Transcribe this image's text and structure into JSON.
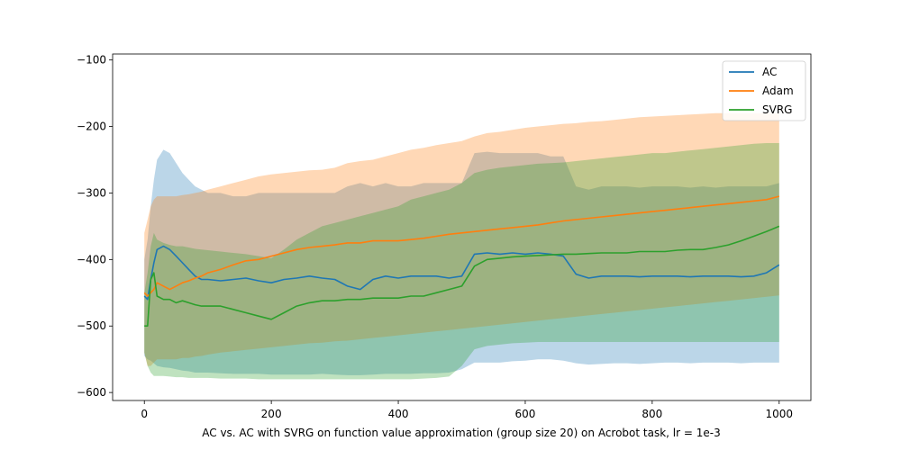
{
  "chart_data": {
    "type": "line",
    "title": "",
    "xlabel": "AC vs. AC with SVRG on function value approximation (group size 20) on Acrobot task, lr = 1e-3",
    "ylabel": "",
    "xlim": [
      -50,
      1050
    ],
    "ylim": [
      -612,
      -91
    ],
    "xticks": [
      "0",
      "200",
      "400",
      "600",
      "800",
      "1000"
    ],
    "yticks": [
      "−100",
      "−200",
      "−300",
      "−400",
      "−500",
      "−600"
    ],
    "grid": false,
    "legend_position": "upper right",
    "x": [
      0,
      5,
      10,
      15,
      20,
      30,
      40,
      50,
      60,
      70,
      80,
      90,
      100,
      120,
      140,
      160,
      180,
      200,
      220,
      240,
      260,
      280,
      300,
      320,
      340,
      360,
      380,
      400,
      420,
      440,
      460,
      480,
      500,
      520,
      540,
      560,
      580,
      600,
      620,
      640,
      660,
      680,
      700,
      720,
      740,
      760,
      780,
      800,
      820,
      840,
      860,
      880,
      900,
      920,
      940,
      960,
      980,
      1000
    ],
    "series": [
      {
        "name": "AC",
        "color": "#1f77b4",
        "mean": [
          -455,
          -460,
          -430,
          -405,
          -385,
          -380,
          -385,
          -395,
          -405,
          -415,
          -425,
          -430,
          -430,
          -432,
          -430,
          -428,
          -432,
          -435,
          -430,
          -428,
          -425,
          -428,
          -430,
          -440,
          -445,
          -430,
          -425,
          -428,
          -425,
          -425,
          -425,
          -428,
          -425,
          -392,
          -390,
          -392,
          -390,
          -392,
          -390,
          -392,
          -395,
          -422,
          -428,
          -425,
          -425,
          -425,
          -426,
          -425,
          -425,
          -425,
          -426,
          -425,
          -425,
          -425,
          -426,
          -425,
          -420,
          -408
        ],
        "upper": [
          -400,
          -370,
          -320,
          -280,
          -250,
          -235,
          -240,
          -255,
          -270,
          -280,
          -290,
          -295,
          -300,
          -300,
          -305,
          -305,
          -300,
          -300,
          -300,
          -300,
          -300,
          -300,
          -300,
          -290,
          -285,
          -290,
          -285,
          -290,
          -290,
          -285,
          -285,
          -285,
          -285,
          -240,
          -238,
          -240,
          -240,
          -240,
          -240,
          -245,
          -245,
          -290,
          -295,
          -290,
          -290,
          -290,
          -292,
          -290,
          -290,
          -290,
          -292,
          -290,
          -292,
          -290,
          -290,
          -290,
          -290,
          -285
        ],
        "lower": [
          -545,
          -550,
          -552,
          -556,
          -560,
          -562,
          -563,
          -565,
          -567,
          -568,
          -570,
          -570,
          -570,
          -571,
          -572,
          -572,
          -572,
          -573,
          -573,
          -573,
          -573,
          -572,
          -573,
          -574,
          -574,
          -573,
          -572,
          -572,
          -572,
          -571,
          -571,
          -570,
          -565,
          -555,
          -555,
          -555,
          -553,
          -552,
          -550,
          -550,
          -552,
          -556,
          -558,
          -557,
          -556,
          -556,
          -557,
          -556,
          -555,
          -555,
          -556,
          -555,
          -555,
          -555,
          -556,
          -555,
          -555,
          -555
        ]
      },
      {
        "name": "Adam",
        "color": "#ff7f0e",
        "mean": [
          -450,
          -455,
          -450,
          -445,
          -435,
          -440,
          -445,
          -440,
          -435,
          -432,
          -428,
          -425,
          -420,
          -415,
          -408,
          -402,
          -400,
          -395,
          -390,
          -385,
          -382,
          -380,
          -378,
          -375,
          -375,
          -372,
          -372,
          -372,
          -370,
          -368,
          -365,
          -362,
          -360,
          -358,
          -356,
          -354,
          -352,
          -350,
          -348,
          -345,
          -342,
          -340,
          -338,
          -336,
          -334,
          -332,
          -330,
          -328,
          -326,
          -324,
          -322,
          -320,
          -318,
          -316,
          -314,
          -312,
          -310,
          -305
        ],
        "upper": [
          -360,
          -340,
          -320,
          -310,
          -305,
          -305,
          -305,
          -305,
          -303,
          -302,
          -300,
          -298,
          -295,
          -290,
          -285,
          -280,
          -275,
          -272,
          -270,
          -268,
          -266,
          -265,
          -262,
          -255,
          -252,
          -250,
          -245,
          -240,
          -235,
          -232,
          -228,
          -225,
          -222,
          -215,
          -210,
          -208,
          -205,
          -202,
          -200,
          -198,
          -196,
          -195,
          -193,
          -192,
          -190,
          -188,
          -186,
          -185,
          -184,
          -183,
          -182,
          -181,
          -180,
          -180,
          -180,
          -180,
          -180,
          -180
        ],
        "lower": [
          -540,
          -560,
          -560,
          -555,
          -550,
          -550,
          -550,
          -550,
          -548,
          -548,
          -546,
          -545,
          -543,
          -540,
          -538,
          -536,
          -534,
          -532,
          -530,
          -528,
          -526,
          -525,
          -523,
          -522,
          -520,
          -518,
          -516,
          -514,
          -512,
          -510,
          -508,
          -506,
          -504,
          -502,
          -500,
          -498,
          -496,
          -494,
          -492,
          -490,
          -488,
          -486,
          -484,
          -482,
          -480,
          -478,
          -476,
          -474,
          -472,
          -470,
          -468,
          -466,
          -464,
          -462,
          -460,
          -458,
          -456,
          -454
        ]
      },
      {
        "name": "SVRG",
        "color": "#2ca02c",
        "mean": [
          -500,
          -500,
          -430,
          -420,
          -455,
          -460,
          -460,
          -465,
          -462,
          -465,
          -468,
          -470,
          -470,
          -470,
          -475,
          -480,
          -485,
          -490,
          -480,
          -470,
          -465,
          -462,
          -462,
          -460,
          -460,
          -458,
          -458,
          -458,
          -455,
          -455,
          -450,
          -445,
          -440,
          -410,
          -400,
          -398,
          -396,
          -395,
          -394,
          -393,
          -392,
          -392,
          -391,
          -390,
          -390,
          -390,
          -388,
          -388,
          -388,
          -386,
          -385,
          -385,
          -382,
          -378,
          -372,
          -365,
          -358,
          -350
        ],
        "upper": [
          -450,
          -420,
          -380,
          -360,
          -370,
          -375,
          -378,
          -380,
          -380,
          -382,
          -384,
          -385,
          -386,
          -388,
          -390,
          -392,
          -395,
          -398,
          -385,
          -370,
          -360,
          -350,
          -345,
          -340,
          -335,
          -330,
          -325,
          -320,
          -310,
          -305,
          -300,
          -295,
          -285,
          -270,
          -265,
          -262,
          -260,
          -258,
          -256,
          -255,
          -254,
          -252,
          -250,
          -248,
          -246,
          -244,
          -242,
          -240,
          -240,
          -238,
          -236,
          -234,
          -232,
          -230,
          -228,
          -226,
          -225,
          -225
        ],
        "lower": [
          -540,
          -560,
          -570,
          -575,
          -575,
          -575,
          -576,
          -577,
          -577,
          -578,
          -578,
          -578,
          -578,
          -579,
          -579,
          -579,
          -580,
          -580,
          -580,
          -580,
          -580,
          -580,
          -580,
          -580,
          -580,
          -580,
          -580,
          -580,
          -580,
          -579,
          -578,
          -576,
          -560,
          -535,
          -530,
          -528,
          -526,
          -525,
          -524,
          -524,
          -524,
          -524,
          -524,
          -524,
          -524,
          -524,
          -524,
          -524,
          -524,
          -524,
          -524,
          -524,
          -524,
          -524,
          -524,
          -524,
          -524,
          -524
        ]
      }
    ]
  }
}
